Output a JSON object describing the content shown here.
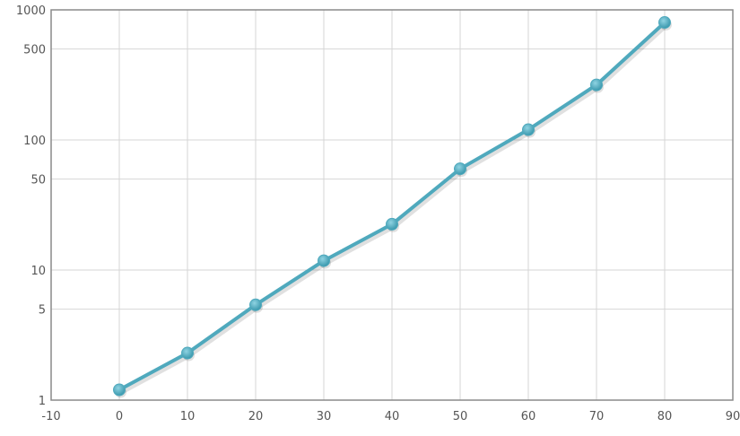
{
  "chart_data": {
    "type": "line",
    "y_scale": "log",
    "grid": true,
    "legend": "none",
    "xlim": [
      -10,
      90
    ],
    "ylim": [
      1,
      1000
    ],
    "x_ticks": [
      -10,
      0,
      10,
      20,
      30,
      40,
      50,
      60,
      70,
      80,
      90
    ],
    "y_ticks": [
      1,
      5,
      10,
      50,
      100,
      500,
      1000
    ],
    "x_tick_labels": [
      "-10",
      "0",
      "10",
      "20",
      "30",
      "40",
      "50",
      "60",
      "70",
      "80",
      "90"
    ],
    "y_tick_labels": [
      "1",
      "5",
      "10",
      "50",
      "100",
      "500",
      "1000"
    ],
    "series": [
      {
        "x": [
          0,
          10,
          20,
          30,
          40,
          50,
          60,
          70,
          80
        ],
        "y": [
          1.2,
          2.3,
          5.4,
          11.8,
          22.5,
          60,
          120,
          265,
          800
        ],
        "color": "#4fa9bd"
      }
    ]
  }
}
